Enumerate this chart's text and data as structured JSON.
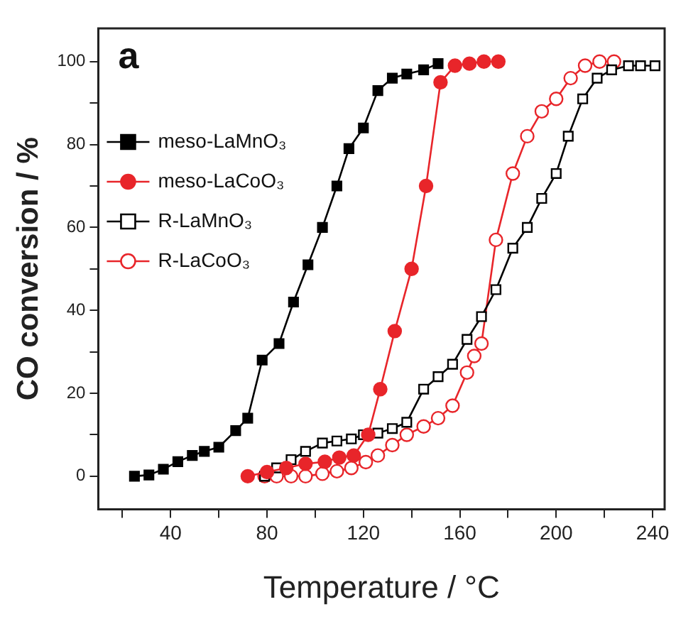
{
  "chart_data": {
    "type": "line",
    "xlabel": "Temperature / °C",
    "ylabel": "CO conversion / %",
    "annotations": [
      "a"
    ],
    "xlim": [
      10,
      245
    ],
    "ylim": [
      -8,
      108
    ],
    "xticks": [
      {
        "value": 20,
        "label": null
      },
      40,
      {
        "value": 60,
        "label": null
      },
      80,
      {
        "value": 100,
        "label": null
      },
      120,
      {
        "value": 140,
        "label": null
      },
      160,
      {
        "value": 180,
        "label": null
      },
      200,
      {
        "value": 220,
        "label": null
      },
      240
    ],
    "yticks": [
      0,
      {
        "value": 10,
        "label": null
      },
      20,
      {
        "value": 30,
        "label": null
      },
      40,
      {
        "value": 50,
        "label": null
      },
      60,
      {
        "value": 70,
        "label": null
      },
      80,
      {
        "value": 90,
        "label": null
      },
      100
    ],
    "grid": false,
    "legend": "top left",
    "line_style": "solid",
    "series": [
      {
        "name": "meso-LaMnO₃",
        "color": "#000000",
        "marker": "square",
        "x": [
          25,
          31,
          37,
          43,
          49,
          54,
          60,
          67,
          72,
          78,
          85,
          91,
          97,
          103,
          109,
          114,
          120,
          126,
          132,
          138,
          145,
          151
        ],
        "values": [
          0,
          0.3,
          1.7,
          3.5,
          5,
          6,
          7,
          11,
          14,
          28,
          32,
          42,
          51,
          60,
          70,
          79,
          84,
          93,
          96,
          97,
          98,
          99.5
        ]
      },
      {
        "name": "meso-LaCoO₃",
        "color": "#e8252a",
        "marker": "circle",
        "x": [
          72,
          80,
          88,
          96,
          104,
          110,
          116,
          122,
          127,
          133,
          140,
          146,
          152,
          158,
          164,
          170,
          176
        ],
        "values": [
          0,
          1,
          2,
          3,
          3.5,
          4.5,
          5,
          10,
          21,
          35,
          50,
          70,
          95,
          99,
          99.5,
          100,
          100
        ]
      },
      {
        "name": "R-LaMnO₃",
        "color": "#000000",
        "marker": "square",
        "x": [
          79,
          84,
          90,
          96,
          103,
          109,
          115,
          120,
          126,
          132,
          138,
          145,
          151,
          157,
          163,
          169,
          175,
          182,
          188,
          194,
          200,
          205,
          211,
          217,
          223,
          230,
          235,
          241
        ],
        "values": [
          0,
          2,
          4,
          6,
          8,
          8.5,
          9,
          10,
          10.4,
          11.5,
          13,
          21,
          24,
          27,
          33,
          38.5,
          45,
          55,
          60,
          67,
          73,
          82,
          91,
          96,
          98,
          99,
          99,
          99
        ]
      },
      {
        "name": "R-LaCoO₃",
        "color": "#e8252a",
        "marker": "circle",
        "x": [
          79,
          84,
          90,
          96,
          103,
          109,
          115,
          121,
          126,
          132,
          138,
          145,
          151,
          157,
          163,
          166,
          169,
          175,
          182,
          188,
          194,
          200,
          206,
          212,
          218,
          224
        ],
        "values": [
          0,
          0,
          0,
          0,
          0.6,
          1.2,
          2,
          3.4,
          5,
          7.5,
          10,
          12,
          14,
          17,
          25,
          29,
          32,
          57,
          73,
          82,
          88,
          91,
          96,
          99,
          100,
          100
        ]
      }
    ]
  }
}
